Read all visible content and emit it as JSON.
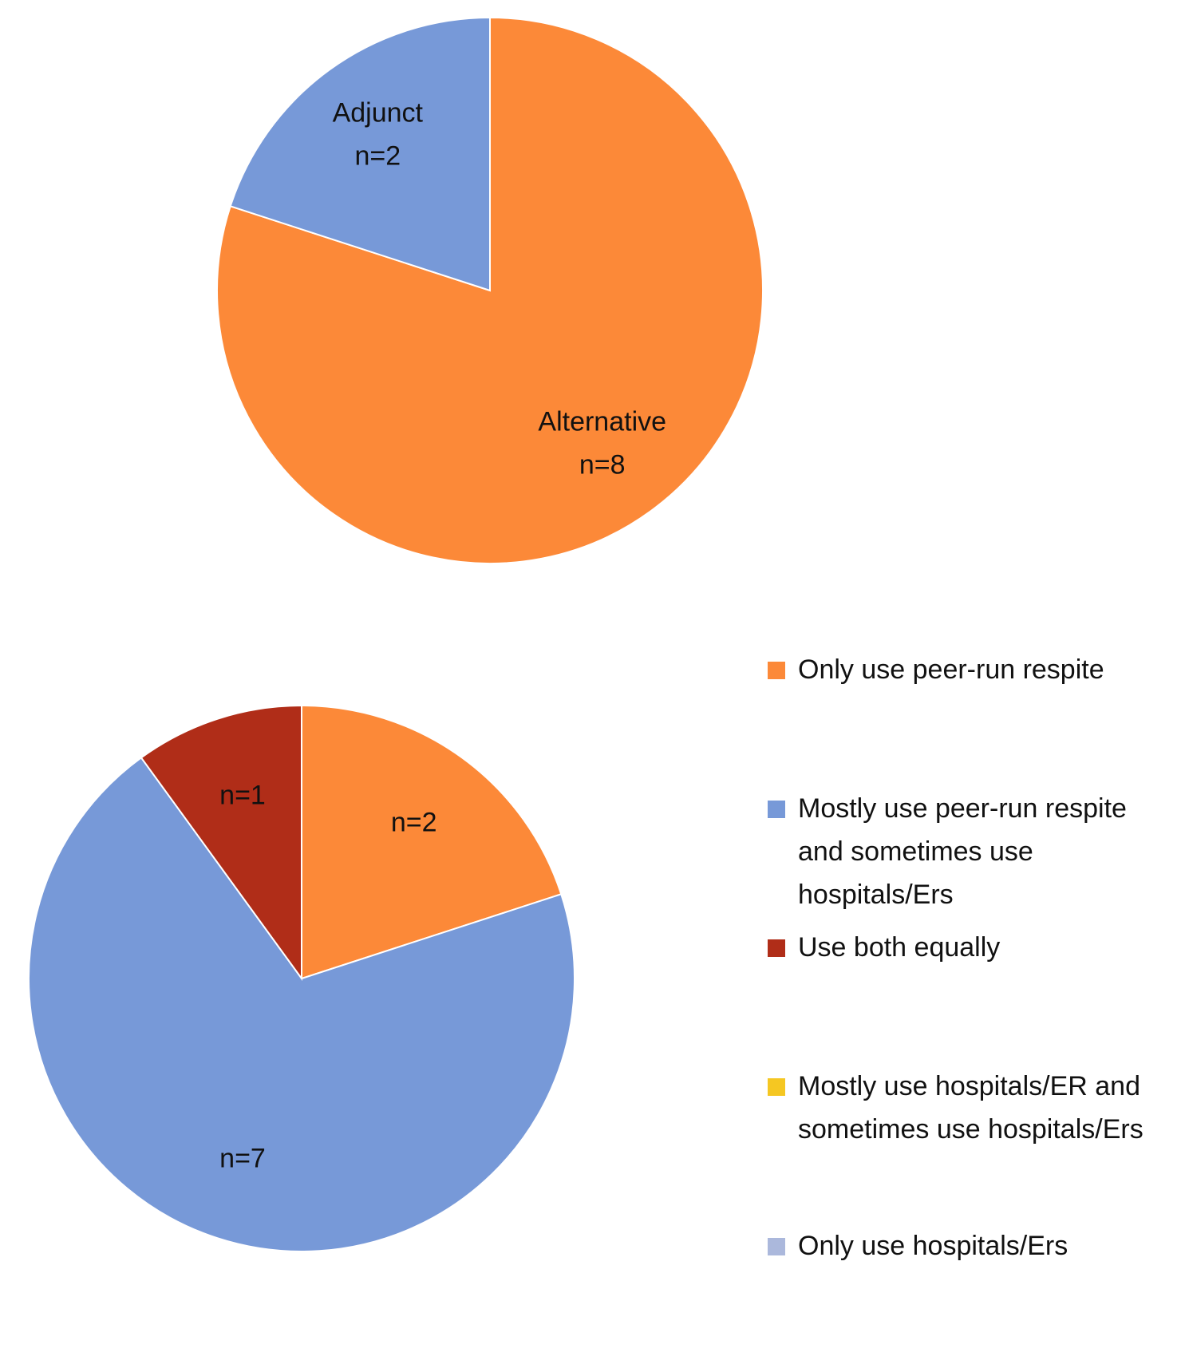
{
  "chart_data": [
    {
      "type": "pie",
      "categories": [
        "Alternative",
        "Adjunct"
      ],
      "values": [
        8,
        2
      ],
      "value_labels": [
        "n=8",
        "n=2"
      ],
      "colors": [
        "#fc8938",
        "#7799d8"
      ],
      "labels_inside": true
    },
    {
      "type": "pie",
      "categories": [
        "Only use peer-run respite",
        "Mostly use peer-run respite and sometimes use hospitals/Ers",
        "Use both equally",
        "Mostly use hospitals/ER and sometimes use hospitals/Ers",
        "Only use hospitals/Ers"
      ],
      "values": [
        2,
        7,
        1,
        0,
        0
      ],
      "value_labels": [
        "n=2",
        "n=7",
        "n=1",
        null,
        null
      ],
      "colors": [
        "#fc8938",
        "#7799d8",
        "#b02d18",
        "#f5c722",
        "#abb8dc"
      ],
      "legend": "right"
    }
  ]
}
